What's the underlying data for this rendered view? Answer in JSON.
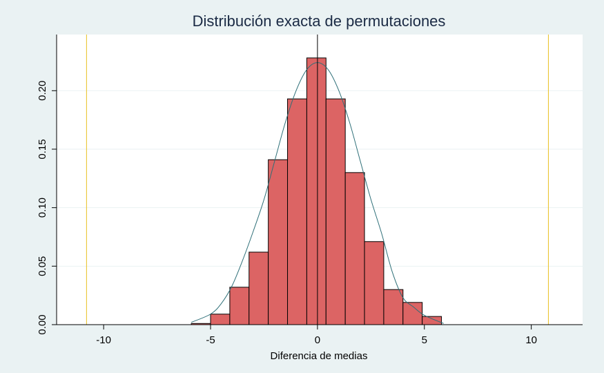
{
  "chart_data": {
    "type": "bar",
    "title": "Distribución exacta de permutaciones",
    "xlabel": "Diferencia de medias",
    "ylabel": "",
    "xlim": [
      -12.2,
      12.4
    ],
    "ylim": [
      0,
      0.248
    ],
    "xticks": [
      {
        "value": -10,
        "label": "-10"
      },
      {
        "value": -5,
        "label": "-5"
      },
      {
        "value": 0,
        "label": "0"
      },
      {
        "value": 5,
        "label": "5"
      },
      {
        "value": 10,
        "label": "10"
      }
    ],
    "yticks": [
      {
        "value": 0,
        "label": "0.00"
      },
      {
        "value": 0.05,
        "label": "0.05"
      },
      {
        "value": 0.1,
        "label": "0.10"
      },
      {
        "value": 0.15,
        "label": "0.15"
      },
      {
        "value": 0.2,
        "label": "0.20"
      }
    ],
    "grid": true,
    "bar_color": "#dc6464",
    "bin_edges": [
      -5.9,
      -5.0,
      -4.1,
      -3.2,
      -2.3,
      -1.4,
      -0.5,
      0.4,
      1.3,
      2.2,
      3.1,
      4.0,
      4.9,
      5.8
    ],
    "values": [
      0.001,
      0.009,
      0.032,
      0.062,
      0.141,
      0.193,
      0.228,
      0.193,
      0.13,
      0.071,
      0.03,
      0.019,
      0.007
    ],
    "density_curve": {
      "color": "#2e6f78",
      "x": [
        -5.9,
        -5.0,
        -4.5,
        -4.0,
        -3.5,
        -3.0,
        -2.5,
        -2.0,
        -1.5,
        -1.0,
        -0.5,
        0,
        0.5,
        1.0,
        1.5,
        2.0,
        2.5,
        3.0,
        3.5,
        4.0,
        4.5,
        5.0,
        5.9
      ],
      "y": [
        0.002,
        0.009,
        0.018,
        0.033,
        0.055,
        0.08,
        0.107,
        0.14,
        0.173,
        0.2,
        0.218,
        0.224,
        0.218,
        0.2,
        0.173,
        0.14,
        0.107,
        0.078,
        0.045,
        0.023,
        0.015,
        0.008,
        0.001
      ]
    },
    "reference_lines": [
      {
        "axis": "x",
        "value": -10.8,
        "color": "#e8c020"
      },
      {
        "axis": "x",
        "value": 10.8,
        "color": "#e8c020"
      },
      {
        "axis": "x",
        "value": 0,
        "color": "#000000"
      }
    ],
    "baseline": {
      "from": -11.1,
      "to": 11.2,
      "value": 0
    }
  }
}
